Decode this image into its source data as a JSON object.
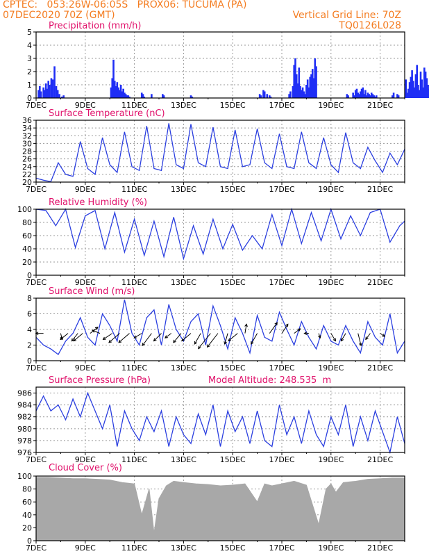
{
  "header": {
    "line1_left": "CPTEC:   053:26W-06:05S   PROX06: TUCUMA (PA)",
    "line2_left": "07DEC2020 70Z (GMT)",
    "line2_right": "Vertical Grid Line: 70Z",
    "line3_right": "TQ0126L028"
  },
  "colors": {
    "header": "#f47c20",
    "title": "#e0106a",
    "line": "#2b3fe0",
    "bar": "#1f2ef5",
    "cloud": "#a8a8a8",
    "grid": "#9a9a9a",
    "arrow": "#000000"
  },
  "x_tick_labels": [
    "7DEC",
    "9DEC",
    "11DEC",
    "13DEC",
    "15DEC",
    "17DEC",
    "19DEC",
    "21DEC"
  ],
  "chart_data": [
    {
      "type": "bar",
      "title": "Precipitation (mm/h)",
      "ylim": [
        0,
        5
      ],
      "yticks": [
        "0",
        "1",
        "2",
        "3",
        "4",
        "5"
      ],
      "x_unit": "days since 7DEC 00Z",
      "x": [
        0.1,
        0.15,
        0.2,
        0.3,
        0.35,
        0.4,
        0.45,
        0.5,
        0.55,
        0.62,
        0.68,
        0.75,
        0.82,
        0.88,
        0.95,
        1.05,
        1.12,
        3.05,
        3.1,
        3.15,
        3.2,
        3.25,
        3.3,
        3.35,
        3.4,
        3.45,
        3.5,
        3.55,
        3.6,
        3.65,
        3.7,
        3.75,
        3.8,
        4.3,
        4.35,
        4.4,
        4.7,
        5.15,
        5.2,
        6.3,
        6.35,
        9.1,
        9.15,
        9.25,
        9.3,
        9.4,
        9.5,
        9.55,
        10.3,
        10.35,
        10.45,
        10.5,
        10.55,
        10.6,
        10.65,
        10.7,
        10.75,
        10.8,
        10.85,
        10.9,
        10.95,
        11.0,
        11.05,
        11.1,
        11.15,
        11.2,
        11.25,
        11.3,
        11.35,
        11.4,
        12.65,
        12.7,
        12.9,
        12.95,
        13.0,
        13.05,
        13.1,
        13.15,
        13.2,
        13.25,
        13.3,
        13.35,
        13.4,
        13.45,
        13.5,
        13.55,
        13.6,
        13.65,
        13.7,
        13.75,
        13.8,
        13.85,
        14.5,
        14.55,
        14.7,
        14.75,
        15.05,
        15.1,
        15.15,
        15.2,
        15.25,
        15.3,
        15.35,
        15.4,
        15.45,
        15.5,
        15.55,
        15.6,
        15.65,
        15.7,
        15.75,
        15.8,
        15.85,
        15.9,
        15.95,
        16.0,
        16.05,
        16.35,
        16.4,
        16.45,
        16.5,
        16.55,
        16.6,
        16.65,
        16.7,
        16.75,
        16.8,
        17.35,
        17.4,
        17.45,
        17.5,
        17.55,
        17.6,
        17.65,
        17.7,
        17.75,
        17.8,
        17.85,
        17.9,
        17.95,
        18.0,
        18.05,
        18.1
      ],
      "values": [
        0.6,
        0.9,
        0.5,
        0.8,
        0.6,
        1.1,
        0.7,
        1.3,
        1.0,
        1.5,
        1.4,
        2.4,
        0.9,
        0.6,
        0.3,
        0.1,
        0.2,
        0.8,
        1.5,
        2.9,
        1.3,
        0.9,
        1.2,
        0.8,
        0.6,
        1.0,
        0.5,
        0.7,
        0.4,
        0.3,
        0.2,
        0.2,
        0.1,
        0.4,
        0.3,
        0.1,
        0.3,
        0.3,
        0.2,
        0.2,
        0.1,
        0.3,
        0.2,
        0.6,
        0.5,
        0.3,
        0.2,
        0.1,
        0.3,
        0.5,
        0.9,
        2.5,
        3.0,
        1.8,
        1.1,
        2.3,
        0.9,
        0.6,
        0.8,
        0.5,
        0.3,
        1.0,
        1.4,
        0.8,
        1.6,
        1.8,
        2.2,
        1.5,
        3.0,
        2.4,
        0.3,
        0.2,
        0.4,
        0.2,
        0.6,
        0.7,
        0.4,
        0.3,
        0.5,
        0.7,
        0.8,
        0.3,
        0.6,
        0.2,
        0.4,
        0.3,
        0.2,
        0.4,
        0.3,
        0.2,
        0.1,
        0.2,
        0.2,
        0.4,
        0.3,
        0.2,
        1.4,
        0.4,
        0.7,
        1.2,
        1.6,
        2.1,
        1.3,
        0.8,
        1.8,
        2.5,
        1.0,
        0.6,
        2.0,
        1.4,
        0.8,
        2.3,
        2.0,
        1.5,
        1.0,
        0.7,
        0.5,
        0.5,
        0.6,
        2.1,
        2.4,
        1.7,
        2.0,
        1.5,
        2.3,
        0.7,
        0.4,
        0.1,
        0.6,
        0.3,
        0.7,
        0.4,
        0.2,
        0.3,
        0.6,
        1.0,
        0.6,
        0.2,
        0.9,
        0.4,
        0.3,
        0.2,
        0.1
      ]
    },
    {
      "type": "line",
      "title": "Surface Temperature (nC)",
      "ylim": [
        20,
        36
      ],
      "yticks": [
        "20",
        "22",
        "24",
        "26",
        "28",
        "30",
        "32",
        "34",
        "36"
      ],
      "x_unit": "days since 7DEC 00Z",
      "x": [
        0.0,
        0.3,
        0.6,
        0.9,
        1.2,
        1.5,
        1.8,
        2.1,
        2.4,
        2.7,
        3.0,
        3.3,
        3.6,
        3.9,
        4.2,
        4.5,
        4.8,
        5.1,
        5.4,
        5.7,
        6.0,
        6.3,
        6.6,
        6.9,
        7.2,
        7.5,
        7.8,
        8.1,
        8.4,
        8.7,
        9.0,
        9.3,
        9.6,
        9.9,
        10.2,
        10.5,
        10.8,
        11.1,
        11.4,
        11.7,
        12.0,
        12.3,
        12.6,
        12.9,
        13.2,
        13.5,
        13.8,
        14.1,
        14.4,
        14.7,
        15.0
      ],
      "values": [
        21.0,
        20.5,
        20.1,
        25.0,
        22.0,
        21.5,
        30.5,
        23.5,
        22.0,
        31.5,
        24.5,
        22.5,
        33.0,
        24.0,
        23.0,
        34.5,
        23.5,
        23.0,
        35.2,
        24.5,
        23.5,
        35.0,
        25.0,
        24.0,
        34.2,
        24.0,
        23.5,
        33.5,
        24.0,
        24.5,
        33.8,
        25.0,
        23.5,
        32.5,
        24.0,
        23.5,
        33.0,
        25.0,
        23.5,
        31.5,
        24.5,
        22.5,
        32.8,
        25.0,
        23.5,
        29.0,
        25.5,
        22.5,
        27.5,
        24.5,
        28.5
      ]
    },
    {
      "type": "line",
      "title": "Relative Humidity (%)",
      "ylim": [
        0,
        100
      ],
      "yticks": [
        "0",
        "20",
        "40",
        "60",
        "80",
        "100"
      ],
      "x_unit": "days since 7DEC 00Z",
      "x": [
        0.0,
        0.4,
        0.8,
        1.2,
        1.6,
        2.0,
        2.4,
        2.8,
        3.2,
        3.6,
        4.0,
        4.4,
        4.8,
        5.2,
        5.6,
        6.0,
        6.4,
        6.8,
        7.2,
        7.6,
        8.0,
        8.4,
        8.8,
        9.2,
        9.6,
        10.0,
        10.4,
        10.8,
        11.2,
        11.6,
        12.0,
        12.4,
        12.8,
        13.2,
        13.6,
        14.0,
        14.4,
        14.8,
        15.0
      ],
      "values": [
        100,
        98,
        75,
        100,
        42,
        90,
        98,
        40,
        95,
        35,
        85,
        30,
        82,
        28,
        88,
        25,
        75,
        32,
        85,
        40,
        77,
        38,
        60,
        40,
        92,
        45,
        100,
        48,
        95,
        52,
        100,
        55,
        90,
        60,
        95,
        100,
        50,
        75,
        82
      ]
    },
    {
      "type": "line",
      "title": "Surface Wind (m/s)",
      "ylim": [
        0,
        8
      ],
      "yticks": [
        "0",
        "2",
        "4",
        "6",
        "8"
      ],
      "x_unit": "days since 7DEC 00Z",
      "x": [
        0.0,
        0.3,
        0.6,
        0.9,
        1.2,
        1.5,
        1.8,
        2.1,
        2.4,
        2.7,
        3.0,
        3.3,
        3.6,
        3.9,
        4.2,
        4.5,
        4.8,
        5.1,
        5.4,
        5.7,
        6.0,
        6.3,
        6.6,
        6.9,
        7.2,
        7.5,
        7.8,
        8.1,
        8.4,
        8.7,
        9.0,
        9.3,
        9.6,
        9.9,
        10.2,
        10.5,
        10.8,
        11.1,
        11.4,
        11.7,
        12.0,
        12.3,
        12.6,
        12.9,
        13.2,
        13.5,
        13.8,
        14.1,
        14.4,
        14.7,
        15.0
      ],
      "values": [
        3.0,
        2.0,
        1.5,
        0.8,
        2.5,
        3.5,
        5.5,
        3.0,
        2.0,
        6.0,
        4.5,
        2.5,
        7.8,
        3.5,
        2.0,
        5.5,
        6.5,
        2.0,
        7.2,
        4.0,
        2.5,
        5.0,
        6.0,
        2.0,
        7.0,
        4.5,
        1.5,
        5.5,
        3.5,
        1.0,
        5.8,
        3.0,
        2.5,
        6.2,
        4.0,
        2.0,
        5.0,
        3.0,
        1.5,
        4.5,
        2.5,
        2.0,
        4.5,
        2.5,
        1.0,
        5.0,
        3.0,
        2.0,
        6.0,
        1.0,
        2.5
      ],
      "arrows_x": [
        0.3,
        1.0,
        1.3,
        1.7,
        1.9,
        2.2,
        2.6,
        3.1,
        3.4,
        3.8,
        4.3,
        4.7,
        5.1,
        5.5,
        5.9,
        6.3,
        6.7,
        7.1,
        7.4,
        7.8,
        8.2,
        8.5,
        9.0,
        9.5,
        10.0,
        10.5,
        11.1,
        11.5,
        12.0,
        12.6,
        13.1,
        13.6,
        14.0
      ],
      "arrows_dir": [
        [
          -0.5,
          0
        ],
        [
          0.1,
          -0.4
        ],
        [
          -0.5,
          -0.4
        ],
        [
          -0.4,
          -0.5
        ],
        [
          -0.6,
          -0.5
        ],
        [
          0.5,
          0.4
        ],
        [
          -0.5,
          0.2
        ],
        [
          -0.6,
          -0.4
        ],
        [
          -0.7,
          -0.6
        ],
        [
          -0.7,
          -0.6
        ],
        [
          -0.5,
          -0.3
        ],
        [
          -0.6,
          -0.8
        ],
        [
          -0.5,
          -0.5
        ],
        [
          -0.4,
          -0.3
        ],
        [
          -0.5,
          -0.6
        ],
        [
          -0.6,
          -0.5
        ],
        [
          -0.4,
          -0.7
        ],
        [
          -0.8,
          -1.0
        ],
        [
          -0.7,
          -0.9
        ],
        [
          -0.2,
          -0.7
        ],
        [
          -0.6,
          -0.5
        ],
        [
          0.1,
          0.6
        ],
        [
          -0.4,
          -0.7
        ],
        [
          0.5,
          0.7
        ],
        [
          0.4,
          0.6
        ],
        [
          0.4,
          0.3
        ],
        [
          -0.3,
          0.0
        ],
        [
          0.1,
          -0.3
        ],
        [
          0.3,
          -0.5
        ],
        [
          -0.3,
          -0.5
        ],
        [
          0.2,
          -0.8
        ],
        [
          -0.3,
          -0.4
        ],
        [
          0.3,
          -0.2
        ]
      ]
    },
    {
      "type": "line",
      "title": "Surface Pressure (hPa)",
      "annotation": "Model Altitude: 248.535  m",
      "ylim": [
        976,
        987
      ],
      "yticks": [
        "976",
        "978",
        "980",
        "982",
        "984",
        "986"
      ],
      "x_unit": "days since 7DEC 00Z",
      "x": [
        0.0,
        0.3,
        0.6,
        0.9,
        1.2,
        1.5,
        1.8,
        2.1,
        2.4,
        2.7,
        3.0,
        3.3,
        3.6,
        3.9,
        4.2,
        4.5,
        4.8,
        5.1,
        5.4,
        5.7,
        6.0,
        6.3,
        6.6,
        6.9,
        7.2,
        7.5,
        7.8,
        8.1,
        8.4,
        8.7,
        9.0,
        9.3,
        9.6,
        9.9,
        10.2,
        10.5,
        10.8,
        11.1,
        11.4,
        11.7,
        12.0,
        12.3,
        12.6,
        12.9,
        13.2,
        13.5,
        13.8,
        14.1,
        14.4,
        14.7,
        15.0
      ],
      "values": [
        983,
        985.5,
        983,
        984,
        981.5,
        985,
        982,
        986,
        983,
        980,
        984,
        977,
        983,
        980,
        978,
        982,
        979.5,
        983,
        977,
        982,
        979,
        977.5,
        982.5,
        979,
        984,
        977,
        983,
        979.5,
        982,
        977.5,
        983,
        978,
        977,
        984,
        979,
        982,
        977.5,
        983,
        979,
        977,
        982,
        979,
        984,
        977,
        982,
        978,
        983,
        979.5,
        976,
        982,
        977.5
      ]
    },
    {
      "type": "area",
      "title": "Cloud Cover (%)",
      "ylim": [
        0,
        100
      ],
      "yticks": [
        "0",
        "20",
        "40",
        "60",
        "80",
        "100"
      ],
      "x_unit": "days since 7DEC 00Z",
      "x": [
        0.0,
        0.5,
        1.0,
        1.5,
        2.0,
        2.5,
        3.0,
        3.5,
        4.0,
        4.3,
        4.6,
        4.8,
        5.0,
        5.3,
        5.6,
        6.0,
        6.5,
        7.0,
        7.5,
        8.0,
        8.5,
        9.0,
        9.3,
        9.6,
        10.0,
        10.5,
        11.0,
        11.5,
        11.8,
        12.0,
        12.2,
        12.5,
        13.0,
        13.5,
        14.0,
        14.5,
        15.0
      ],
      "values": [
        98,
        98,
        97,
        96,
        96,
        95,
        94,
        90,
        88,
        40,
        80,
        12,
        65,
        85,
        92,
        90,
        88,
        87,
        85,
        86,
        88,
        60,
        88,
        85,
        88,
        92,
        86,
        25,
        80,
        88,
        75,
        90,
        92,
        95,
        96,
        97,
        97
      ]
    }
  ]
}
